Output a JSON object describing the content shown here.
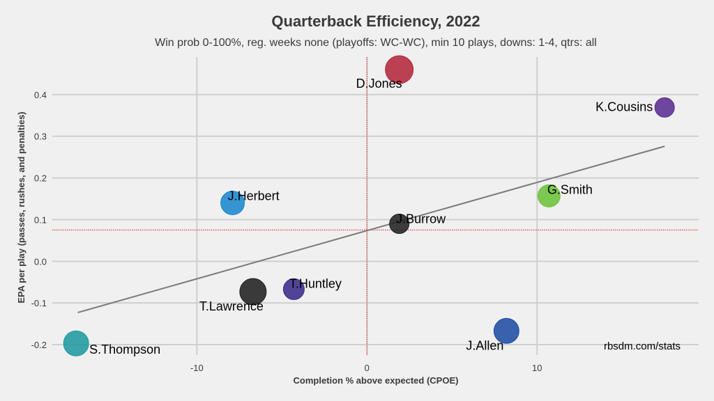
{
  "chart_data": {
    "type": "scatter",
    "title": "Quarterback Efficiency, 2022",
    "subtitle": "Win prob 0-100%, reg. weeks none (playoffs: WC-WC), min 10 plays, downs: 1-4, qtrs: all",
    "xlabel": "Completion % above expected (CPOE)",
    "ylabel": "EPA per play (passes, rushes, and penalties)",
    "xlim": [
      -18.5,
      19.5
    ],
    "ylim": [
      -0.225,
      0.49
    ],
    "xticks": [
      -10,
      0,
      10
    ],
    "xtick_labels": [
      "-10",
      "0",
      "10"
    ],
    "yticks": [
      -0.2,
      -0.1,
      0.0,
      0.1,
      0.2,
      0.3,
      0.4
    ],
    "ytick_labels": [
      "-0.2",
      "-0.1",
      "0.0",
      "0.1",
      "0.2",
      "0.3",
      "0.4"
    ],
    "grid": true,
    "ref_lines": {
      "x": 0,
      "y": 0.075,
      "color": "#e05555"
    },
    "trend_line": {
      "x": [
        -17.0,
        17.5
      ],
      "y": [
        -0.123,
        0.276
      ],
      "color": "#7a7a7a"
    },
    "credit": "rbsdm.com/stats",
    "points": [
      {
        "name": "D.Jones",
        "x": 1.9,
        "y": 0.46,
        "color": "#b3283b"
      },
      {
        "name": "K.Cousins",
        "x": 17.5,
        "y": 0.369,
        "color": "#5a2d91"
      },
      {
        "name": "J.Herbert",
        "x": -7.9,
        "y": 0.14,
        "color": "#1a86cc"
      },
      {
        "name": "G.Smith",
        "x": 10.7,
        "y": 0.157,
        "color": "#6cc13a"
      },
      {
        "name": "J.Burrow",
        "x": 1.9,
        "y": 0.09,
        "color": "#222222"
      },
      {
        "name": "T.Huntley",
        "x": -4.3,
        "y": -0.067,
        "color": "#3a2a8a"
      },
      {
        "name": "T.Lawrence",
        "x": -6.7,
        "y": -0.073,
        "color": "#202020"
      },
      {
        "name": "J.Allen",
        "x": 8.2,
        "y": -0.167,
        "color": "#1f4ca3"
      },
      {
        "name": "S.Thompson",
        "x": -17.1,
        "y": -0.197,
        "color": "#1f9aa0"
      }
    ]
  }
}
